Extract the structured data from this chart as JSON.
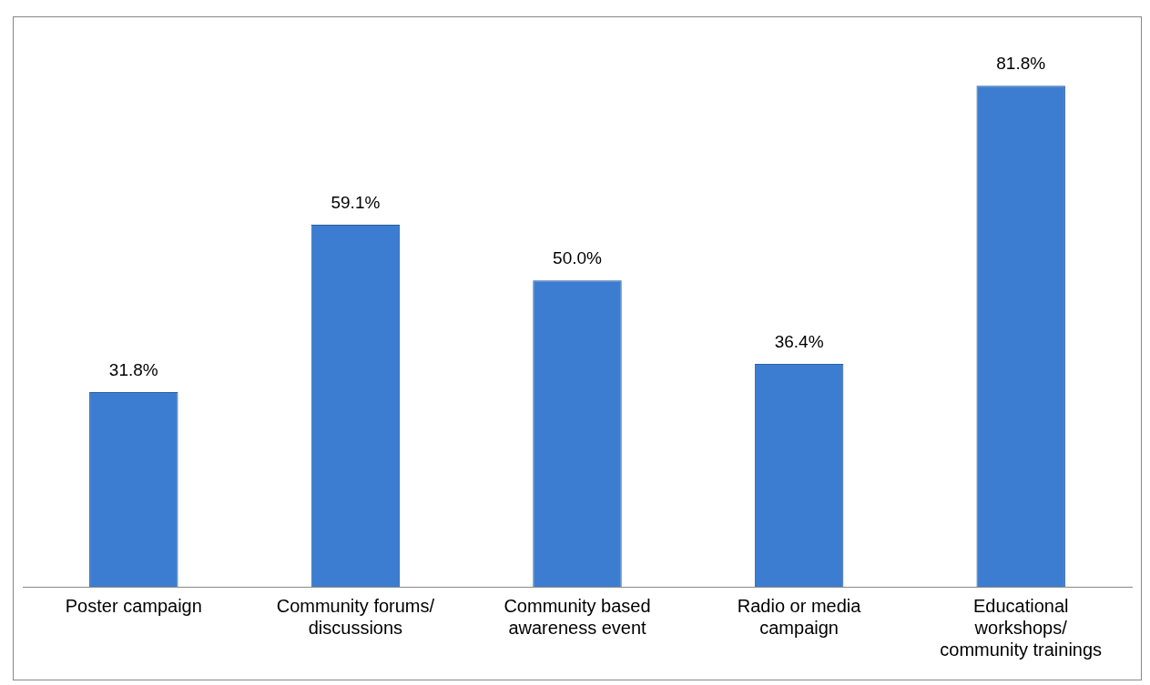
{
  "chart_data": {
    "type": "bar",
    "categories": [
      "Poster campaign",
      "Community forums/ discussions",
      "Community based awareness event",
      "Radio or media campaign",
      "Educational workshops/ community trainings"
    ],
    "values": [
      31.8,
      59.1,
      50.0,
      36.4,
      81.8
    ],
    "value_labels": [
      "31.8%",
      "59.1%",
      "50.0%",
      "36.4%",
      "81.8%"
    ],
    "color": "#3c7dd1"
  }
}
